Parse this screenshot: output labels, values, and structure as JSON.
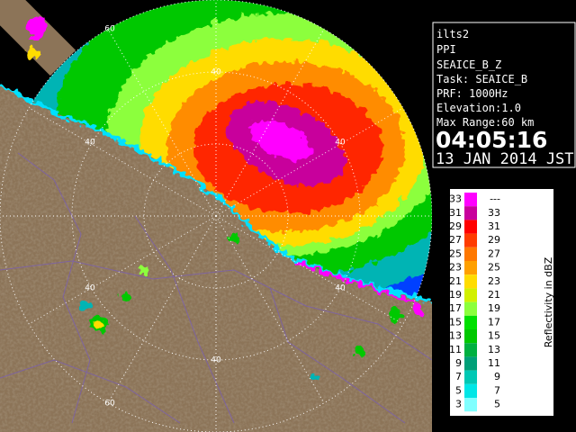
{
  "info_panel": {
    "station": "ilts2",
    "mode": "PPI",
    "product": "SEAICE_B_Z",
    "task": "Task: SEAICE_B",
    "prf": "PRF: 1000Hz",
    "elevation": "Elevation:1.0",
    "max_range": "Max Range:60 km",
    "time": "04:05:16",
    "date": "13 JAN 2014 JST"
  },
  "legend": {
    "title": "Reflectivity in dBZ",
    "rows": [
      {
        "low": ">33",
        "high": "---",
        "color": "#ff00ff"
      },
      {
        "low": "31",
        "high": "33",
        "color": "#c8009c"
      },
      {
        "low": "29",
        "high": "31",
        "color": "#ff0000"
      },
      {
        "low": "27",
        "high": "29",
        "color": "#ff3c00"
      },
      {
        "low": "25",
        "high": "27",
        "color": "#ff7800"
      },
      {
        "low": "23",
        "high": "25",
        "color": "#ffa000"
      },
      {
        "low": "21",
        "high": "23",
        "color": "#ffdc00"
      },
      {
        "low": "19",
        "high": "21",
        "color": "#d2f000"
      },
      {
        "low": "17",
        "high": "19",
        "color": "#8cff3c"
      },
      {
        "low": "15",
        "high": "17",
        "color": "#00e000"
      },
      {
        "low": "13",
        "high": "15",
        "color": "#00c800"
      },
      {
        "low": "11",
        "high": "13",
        "color": "#00b040"
      },
      {
        "low": "9",
        "high": "11",
        "color": "#00a078"
      },
      {
        "low": "7",
        "high": "9",
        "color": "#00c8b4"
      },
      {
        "low": "5",
        "high": "7",
        "color": "#00e6e6"
      },
      {
        "low": "3",
        "high": "5",
        "color": "#80ffff"
      }
    ]
  },
  "map": {
    "range_labels": [
      "60",
      "40",
      "40",
      "40",
      "40",
      "40",
      "40",
      "60"
    ]
  }
}
